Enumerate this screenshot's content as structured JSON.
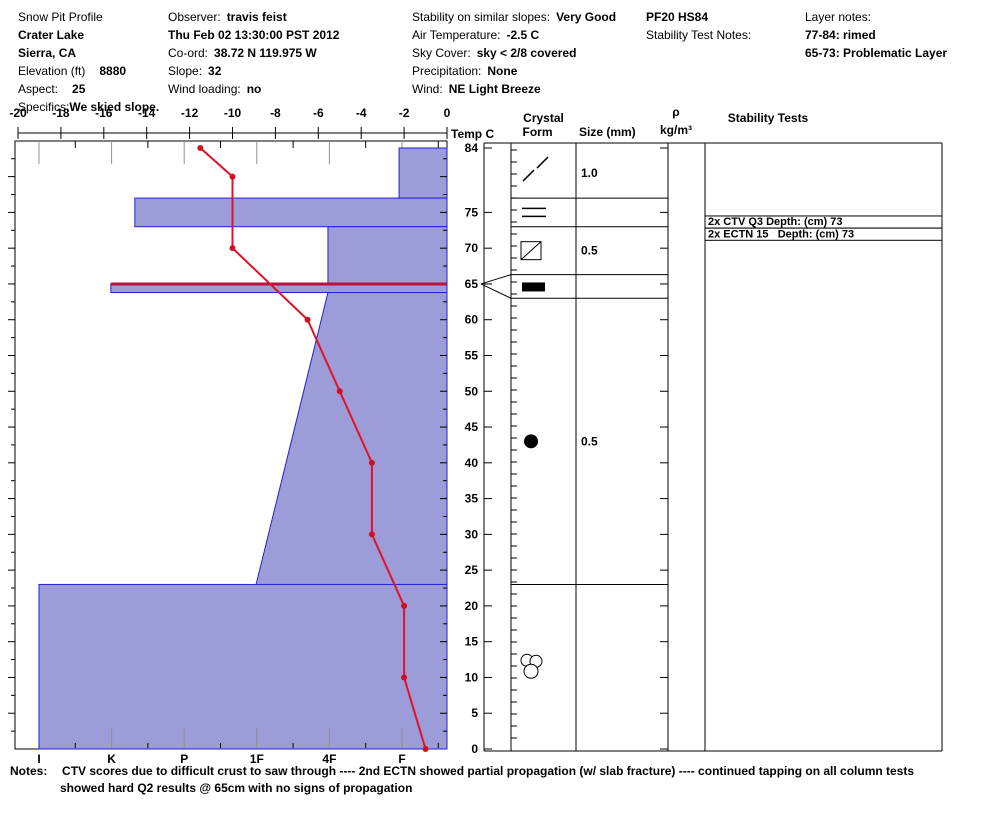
{
  "header": {
    "col1": {
      "title": "Snow Pit Profile",
      "location": "Crater Lake",
      "region": "Sierra, CA",
      "elevation_label": "Elevation (ft)",
      "elevation_value": "8880",
      "aspect_label": "Aspect:",
      "aspect_value": "25",
      "specifics_label": "Specifics:",
      "specifics_value": "We skied slope."
    },
    "col2": {
      "observer_label": "Observer:",
      "observer_value": "travis feist",
      "datetime": "Thu Feb 02 13:30:00 PST 2012",
      "coord_label": "Co-ord:",
      "coord_value": "38.72 N 119.975 W",
      "slope_label": "Slope:",
      "slope_value": "32",
      "wind_loading_label": "Wind loading:",
      "wind_loading_value": "no"
    },
    "col3": {
      "stability_label": "Stability on similar slopes:",
      "stability_value": "Very Good",
      "air_temp_label": "Air Temperature:",
      "air_temp_value": "-2.5 C",
      "sky_label": "Sky Cover:",
      "sky_value": "sky < 2/8 covered",
      "precip_label": "Precipitation:",
      "precip_value": "None",
      "wind_label": "Wind:",
      "wind_value": "NE Light Breeze"
    },
    "col4": {
      "pit_code": "PF20 HS84",
      "test_notes_label": "Stability Test Notes:"
    },
    "col5": {
      "label": "Layer notes:",
      "note1": "77-84: rimed",
      "note2": "65-73: Problematic Layer"
    }
  },
  "chart_data": {
    "type": "bar",
    "subtype": "snow-pit-hardness-profile-with-temperature-line",
    "temp_axis": {
      "label": "Temp C",
      "ticks": [
        -20,
        -18,
        -16,
        -14,
        -12,
        -10,
        -8,
        -6,
        -4,
        -2,
        0
      ]
    },
    "depth_axis": {
      "unit": "cm",
      "max": 84,
      "labels": [
        84,
        75,
        70,
        65,
        60,
        55,
        50,
        45,
        40,
        35,
        30,
        25,
        20,
        15,
        10,
        5,
        0
      ]
    },
    "hardness_axis": {
      "labels": [
        "I",
        "K",
        "P",
        "1F",
        "4F",
        "F"
      ]
    },
    "layers": [
      {
        "from_cm": 84,
        "to_cm": 77,
        "hardness": "F",
        "idx": 4.96
      },
      {
        "from_cm": 77,
        "to_cm": 73,
        "hardness": "K+",
        "idx": 1.32
      },
      {
        "from_cm": 73,
        "to_cm": 65,
        "hardness": "4F",
        "idx": 3.98
      },
      {
        "from_cm": 65,
        "to_cm": 63.8,
        "hardness": "K",
        "idx": 0.99,
        "concern": true
      },
      {
        "from_cm": 63.8,
        "to_cm": 23,
        "hardness": "4F to 1F",
        "idx": 3.98,
        "idx_bottom": 2.99
      },
      {
        "from_cm": 23,
        "to_cm": 0,
        "hardness": "I",
        "idx": 0
      }
    ],
    "temperature_c_by_depth": [
      {
        "depth": 84,
        "temp": -11.5
      },
      {
        "depth": 80,
        "temp": -10
      },
      {
        "depth": 70,
        "temp": -10
      },
      {
        "depth": 60,
        "temp": -6.5
      },
      {
        "depth": 50,
        "temp": -5
      },
      {
        "depth": 40,
        "temp": -3.5
      },
      {
        "depth": 30,
        "temp": -3.5
      },
      {
        "depth": 20,
        "temp": -2
      },
      {
        "depth": 10,
        "temp": -2
      },
      {
        "depth": 0,
        "temp": -1
      }
    ],
    "layer_of_concern_depth_cm": 65,
    "columns": {
      "crystal_line1": "Crystal",
      "crystal_line2": "Form",
      "size": "Size (mm)",
      "rho_line1": "ρ",
      "rho_line2": "kg/m³",
      "stability": "Stability Tests"
    },
    "crystal_rows": [
      {
        "from_cm": 84,
        "to_cm": 77,
        "symbol": "rimed-slashes",
        "size_mm": "1.0"
      },
      {
        "from_cm": 77,
        "to_cm": 73,
        "symbol": "horizontal-lines",
        "size_mm": ""
      },
      {
        "from_cm": 73,
        "to_cm": 66.3,
        "symbol": "square-slash",
        "size_mm": "0.5"
      },
      {
        "from_cm": 66.3,
        "to_cm": 63,
        "symbol": "ice-bar",
        "size_mm": ""
      },
      {
        "from_cm": 63,
        "to_cm": 23,
        "symbol": "filled-dot",
        "size_mm": "0.5",
        "symbol_depth_cm": 43
      },
      {
        "from_cm": 23,
        "to_cm": 0,
        "symbol": "graupel",
        "size_mm": "",
        "symbol_depth_cm": 11.7
      }
    ],
    "stability_tests": [
      {
        "text": "2x CTV Q3 Depth: (cm) 73",
        "top_cm": 74.5,
        "bottom_cm": 72.8
      },
      {
        "text": "2x ECTN 15   Depth: (cm) 73",
        "top_cm": 72.8,
        "bottom_cm": 71.1
      }
    ],
    "colors": {
      "bar_fill": "#9c9cd9",
      "bar_border": "#2121cd",
      "temp_line": "#e11227",
      "temp_dot": "#cf1020",
      "concern_line": "#bb1038",
      "grid_gray": "#909090"
    }
  },
  "notes": {
    "label": "Notes:",
    "line1": "CTV scores due to difficult crust to saw through ---- 2nd ECTN showed partial propagation (w/ slab fracture) ---- continued tapping on all column tests",
    "line2": "showed hard Q2 results @ 65cm with no signs of propagation"
  }
}
